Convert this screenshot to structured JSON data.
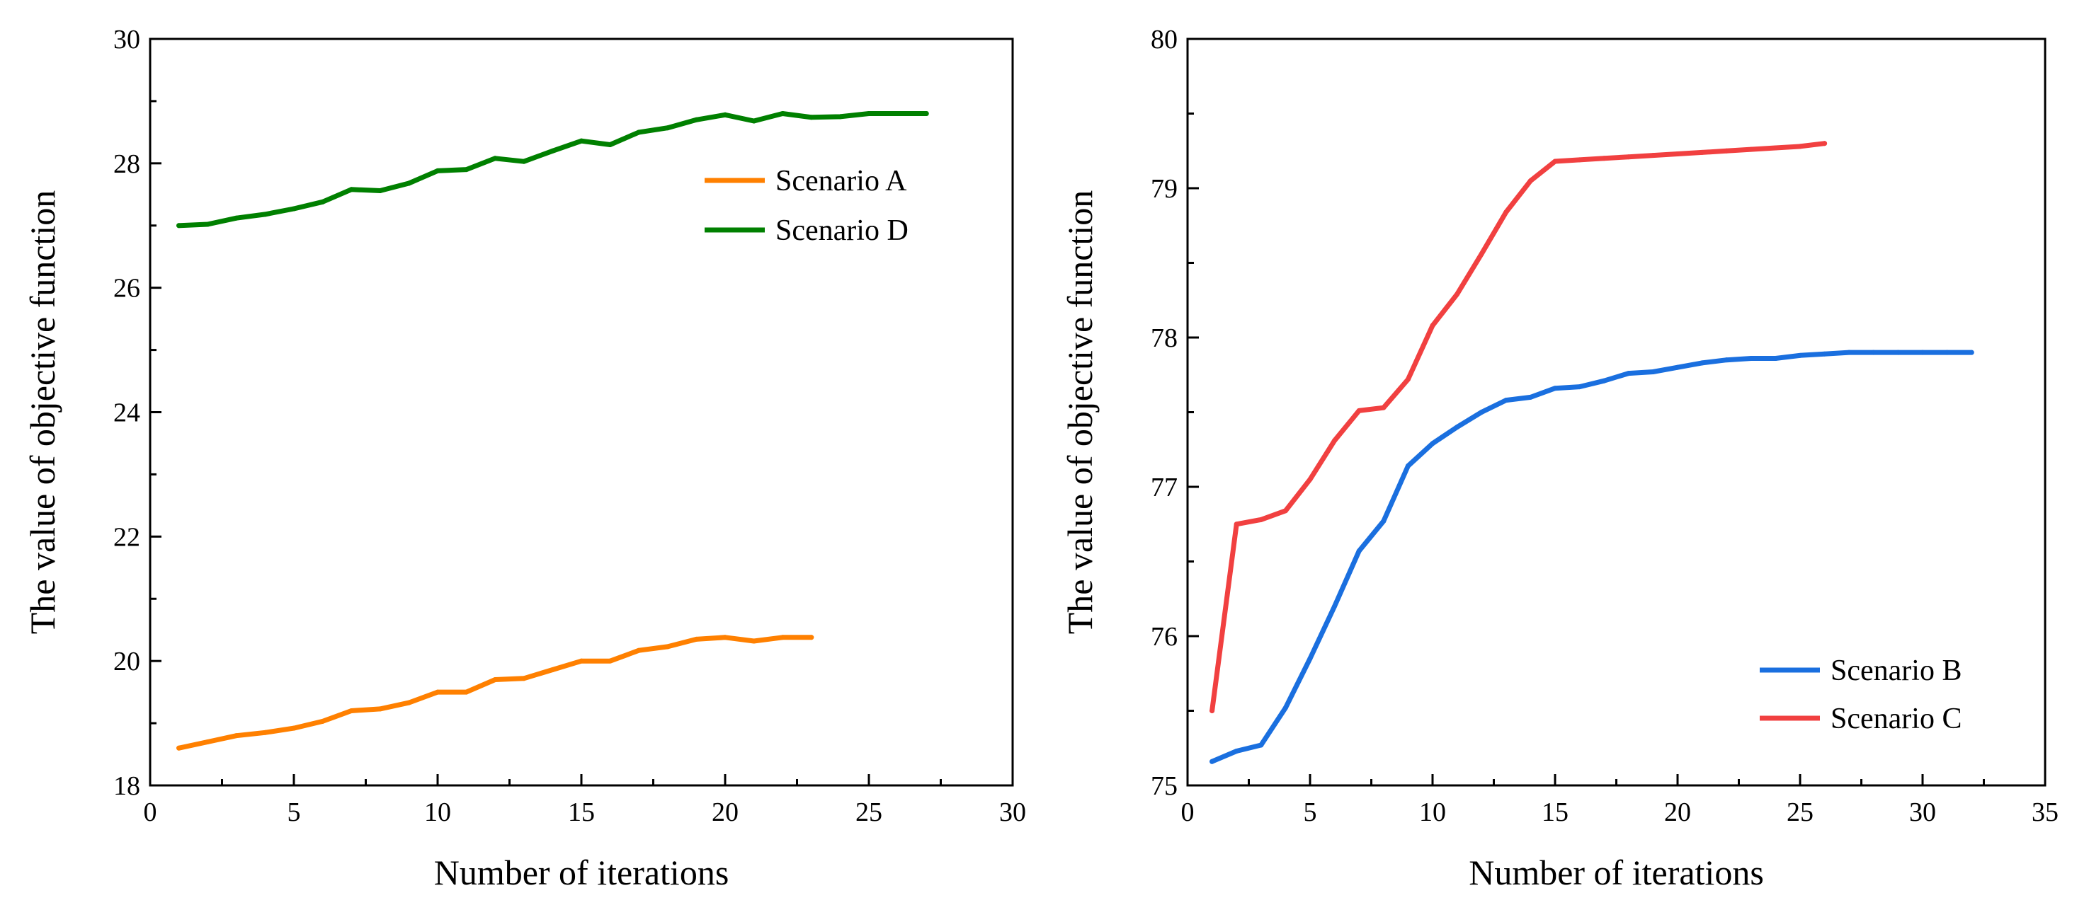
{
  "chart_data": [
    {
      "type": "line",
      "title": "",
      "xlabel": "Number of iterations",
      "ylabel": "The value of objective function",
      "xlim": [
        0,
        30
      ],
      "ylim": [
        18,
        30
      ],
      "xticks": [
        0,
        5,
        10,
        15,
        20,
        25,
        30
      ],
      "yticks": [
        18,
        20,
        22,
        24,
        26,
        28,
        30
      ],
      "grid": false,
      "legend_position": "top-right",
      "series": [
        {
          "name": "Scenario A",
          "color": "#ff8000",
          "x": [
            1,
            2,
            3,
            4,
            5,
            6,
            7,
            8,
            9,
            10,
            11,
            12,
            13,
            14,
            15,
            16,
            17,
            18,
            19,
            20,
            21,
            22,
            23
          ],
          "y": [
            18.6,
            18.7,
            18.8,
            18.85,
            18.92,
            19.03,
            19.2,
            19.23,
            19.33,
            19.5,
            19.5,
            19.7,
            19.72,
            19.86,
            20.0,
            20.0,
            20.17,
            20.23,
            20.35,
            20.38,
            20.32,
            20.38,
            20.38
          ]
        },
        {
          "name": "Scenario D",
          "color": "#008000",
          "x": [
            1,
            2,
            3,
            4,
            5,
            6,
            7,
            8,
            9,
            10,
            11,
            12,
            13,
            14,
            15,
            16,
            17,
            18,
            19,
            20,
            21,
            22,
            23,
            24,
            25,
            26,
            27
          ],
          "y": [
            27.0,
            27.02,
            27.12,
            27.18,
            27.27,
            27.38,
            27.58,
            27.56,
            27.68,
            27.88,
            27.9,
            28.08,
            28.03,
            28.2,
            28.36,
            28.3,
            28.5,
            28.57,
            28.7,
            28.78,
            28.68,
            28.8,
            28.74,
            28.75,
            28.8,
            28.8,
            28.8
          ]
        }
      ]
    },
    {
      "type": "line",
      "title": "",
      "xlabel": "Number of iterations",
      "ylabel": "The value of objective function",
      "xlim": [
        0,
        35
      ],
      "ylim": [
        75,
        80
      ],
      "xticks": [
        0,
        5,
        10,
        15,
        20,
        25,
        30,
        35
      ],
      "yticks": [
        75,
        76,
        77,
        78,
        79,
        80
      ],
      "grid": false,
      "legend_position": "bottom-right",
      "series": [
        {
          "name": "Scenario B",
          "color": "#1a6fdf",
          "x": [
            1,
            2,
            3,
            4,
            5,
            6,
            7,
            8,
            9,
            10,
            11,
            12,
            13,
            14,
            15,
            16,
            17,
            18,
            19,
            20,
            21,
            22,
            23,
            24,
            25,
            26,
            27,
            28,
            29,
            30,
            31,
            32
          ],
          "y": [
            75.16,
            75.23,
            75.27,
            75.52,
            75.85,
            76.2,
            76.57,
            76.77,
            77.14,
            77.29,
            77.4,
            77.5,
            77.58,
            77.6,
            77.66,
            77.67,
            77.71,
            77.76,
            77.77,
            77.8,
            77.83,
            77.85,
            77.86,
            77.86,
            77.88,
            77.89,
            77.9,
            77.9,
            77.9,
            77.9,
            77.9,
            77.9
          ]
        },
        {
          "name": "Scenario C",
          "color": "#f14040",
          "x": [
            1,
            2,
            3,
            4,
            5,
            6,
            7,
            8,
            9,
            10,
            11,
            12,
            13,
            14,
            15,
            16,
            17,
            18,
            19,
            20,
            21,
            22,
            23,
            24,
            25,
            26
          ],
          "y": [
            75.5,
            76.75,
            76.78,
            76.84,
            77.05,
            77.31,
            77.51,
            77.53,
            77.72,
            78.08,
            78.29,
            78.56,
            78.84,
            79.05,
            79.18,
            79.19,
            79.2,
            79.21,
            79.22,
            79.23,
            79.24,
            79.25,
            79.26,
            79.27,
            79.28,
            79.3
          ]
        }
      ]
    }
  ]
}
